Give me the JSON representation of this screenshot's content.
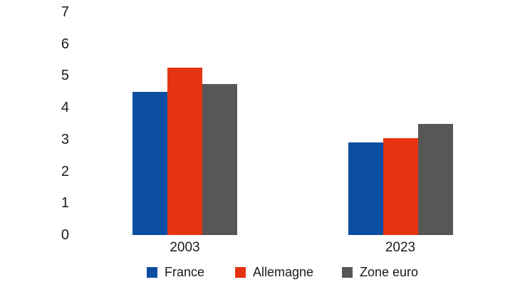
{
  "chart_data": {
    "type": "bar",
    "title": "",
    "xlabel": "",
    "ylabel": "",
    "categories": [
      "2003",
      "2023"
    ],
    "series": [
      {
        "name": "France",
        "color": "#0b4ea2",
        "values": [
          4.5,
          2.9
        ]
      },
      {
        "name": "Allemagne",
        "color": "#e63312",
        "values": [
          5.25,
          3.05
        ]
      },
      {
        "name": "Zone euro",
        "color": "#575756",
        "values": [
          4.75,
          3.5
        ]
      }
    ],
    "ylim": [
      0,
      7
    ],
    "yticks": [
      "0",
      "1",
      "2",
      "3",
      "4",
      "5",
      "6",
      "7"
    ],
    "grid": false,
    "legend_position": "bottom",
    "legend": [
      "France",
      "Allemagne",
      "Zone euro"
    ]
  },
  "colors": {
    "background": "#ffffff",
    "text": "#1a1a1a"
  }
}
